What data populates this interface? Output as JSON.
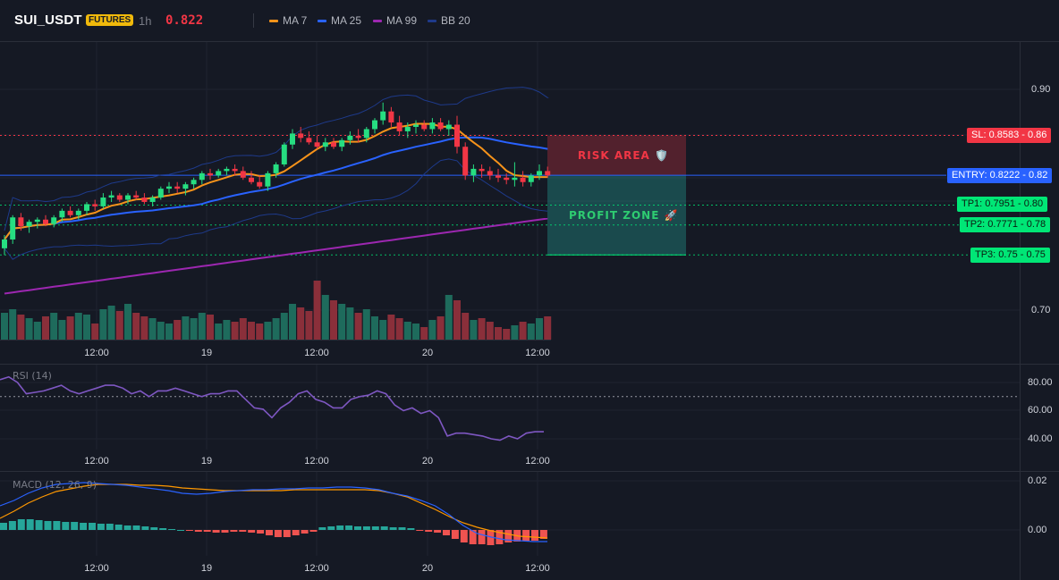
{
  "header": {
    "symbol": "SUI_USDT",
    "badge": "FUTURES",
    "timeframe": "1h",
    "price": "0.822",
    "legend": [
      {
        "label": "MA 7",
        "color": "#f7931a"
      },
      {
        "label": "MA 25",
        "color": "#2962ff"
      },
      {
        "label": "MA 99",
        "color": "#9c27b0"
      },
      {
        "label": "BB 20",
        "color": "#1e3a8a"
      }
    ]
  },
  "price_axis": {
    "ticks": [
      {
        "label": "0.90",
        "value": 0.9
      },
      {
        "label": "0.70",
        "value": 0.7
      }
    ]
  },
  "time_axis": {
    "labels": [
      "12:00",
      "19",
      "12:00",
      "20",
      "12:00"
    ]
  },
  "levels": {
    "sl": {
      "label": "SL: 0.8583 - 0.86",
      "value": 0.8583,
      "color": "#f23645"
    },
    "entry": {
      "label": "ENTRY: 0.8222 - 0.82",
      "value": 0.8222,
      "color": "#2962ff"
    },
    "tp1": {
      "label": "TP1: 0.7951 - 0.80",
      "value": 0.7951,
      "color": "#00e676"
    },
    "tp2": {
      "label": "TP2: 0.7771 - 0.78",
      "value": 0.7771,
      "color": "#00e676"
    },
    "tp3": {
      "label": "TP3: 0.75 - 0.75",
      "value": 0.75,
      "color": "#00e676"
    }
  },
  "zones": {
    "risk": {
      "label": "RISK AREA 🛡️",
      "color": "#f23645"
    },
    "profit": {
      "label": "PROFIT ZONE 🚀",
      "color": "#26a69a"
    }
  },
  "rsi": {
    "title": "RSI (14)",
    "ticks": [
      "80.00",
      "60.00",
      "40.00"
    ],
    "overbought": 70
  },
  "macd": {
    "title": "MACD (12, 26, 9)",
    "ticks": [
      "0.02",
      "0.00"
    ]
  },
  "colors": {
    "up": "#26de81",
    "down": "#f23645",
    "ma7": "#f7931a",
    "ma25": "#2962ff",
    "ma99": "#9c27b0",
    "bb": "#1e3a8a",
    "rsi": "#7e57c2"
  },
  "chart_data": {
    "type": "candlestick",
    "candles": [
      [
        0.756,
        0.768,
        0.75,
        0.764
      ],
      [
        0.764,
        0.786,
        0.76,
        0.784
      ],
      [
        0.784,
        0.788,
        0.772,
        0.776
      ],
      [
        0.776,
        0.782,
        0.77,
        0.78
      ],
      [
        0.78,
        0.784,
        0.774,
        0.782
      ],
      [
        0.782,
        0.786,
        0.776,
        0.778
      ],
      [
        0.778,
        0.786,
        0.775,
        0.784
      ],
      [
        0.784,
        0.792,
        0.78,
        0.79
      ],
      [
        0.79,
        0.794,
        0.784,
        0.786
      ],
      [
        0.786,
        0.792,
        0.782,
        0.79
      ],
      [
        0.79,
        0.798,
        0.786,
        0.796
      ],
      [
        0.796,
        0.8,
        0.79,
        0.794
      ],
      [
        0.794,
        0.806,
        0.792,
        0.802
      ],
      [
        0.802,
        0.808,
        0.798,
        0.804
      ],
      [
        0.804,
        0.806,
        0.798,
        0.8
      ],
      [
        0.8,
        0.806,
        0.796,
        0.804
      ],
      [
        0.804,
        0.808,
        0.8,
        0.802
      ],
      [
        0.802,
        0.806,
        0.796,
        0.798
      ],
      [
        0.798,
        0.804,
        0.794,
        0.802
      ],
      [
        0.802,
        0.812,
        0.8,
        0.81
      ],
      [
        0.81,
        0.816,
        0.806,
        0.812
      ],
      [
        0.812,
        0.816,
        0.806,
        0.81
      ],
      [
        0.81,
        0.816,
        0.804,
        0.814
      ],
      [
        0.814,
        0.82,
        0.81,
        0.818
      ],
      [
        0.818,
        0.826,
        0.814,
        0.824
      ],
      [
        0.824,
        0.828,
        0.818,
        0.822
      ],
      [
        0.822,
        0.828,
        0.82,
        0.826
      ],
      [
        0.826,
        0.83,
        0.822,
        0.828
      ],
      [
        0.828,
        0.832,
        0.822,
        0.826
      ],
      [
        0.826,
        0.83,
        0.818,
        0.82
      ],
      [
        0.82,
        0.826,
        0.814,
        0.816
      ],
      [
        0.816,
        0.822,
        0.81,
        0.812
      ],
      [
        0.812,
        0.826,
        0.808,
        0.824
      ],
      [
        0.824,
        0.834,
        0.82,
        0.832
      ],
      [
        0.832,
        0.852,
        0.83,
        0.85
      ],
      [
        0.85,
        0.864,
        0.846,
        0.86
      ],
      [
        0.86,
        0.866,
        0.852,
        0.856
      ],
      [
        0.856,
        0.862,
        0.85,
        0.852
      ],
      [
        0.852,
        0.858,
        0.846,
        0.848
      ],
      [
        0.848,
        0.856,
        0.844,
        0.852
      ],
      [
        0.852,
        0.856,
        0.846,
        0.848
      ],
      [
        0.848,
        0.856,
        0.844,
        0.854
      ],
      [
        0.854,
        0.862,
        0.85,
        0.858
      ],
      [
        0.858,
        0.864,
        0.852,
        0.856
      ],
      [
        0.856,
        0.866,
        0.852,
        0.864
      ],
      [
        0.864,
        0.874,
        0.86,
        0.872
      ],
      [
        0.872,
        0.888,
        0.868,
        0.88
      ],
      [
        0.88,
        0.884,
        0.866,
        0.87
      ],
      [
        0.87,
        0.876,
        0.858,
        0.862
      ],
      [
        0.862,
        0.87,
        0.856,
        0.866
      ],
      [
        0.866,
        0.872,
        0.86,
        0.868
      ],
      [
        0.868,
        0.872,
        0.862,
        0.864
      ],
      [
        0.864,
        0.874,
        0.86,
        0.87
      ],
      [
        0.87,
        0.874,
        0.862,
        0.864
      ],
      [
        0.864,
        0.872,
        0.858,
        0.868
      ],
      [
        0.868,
        0.876,
        0.842,
        0.848
      ],
      [
        0.848,
        0.852,
        0.818,
        0.822
      ],
      [
        0.822,
        0.832,
        0.816,
        0.828
      ],
      [
        0.828,
        0.832,
        0.82,
        0.826
      ],
      [
        0.826,
        0.83,
        0.818,
        0.822
      ],
      [
        0.822,
        0.828,
        0.816,
        0.82
      ],
      [
        0.82,
        0.824,
        0.814,
        0.818
      ],
      [
        0.818,
        0.834,
        0.812,
        0.82
      ],
      [
        0.82,
        0.826,
        0.812,
        0.816
      ],
      [
        0.816,
        0.824,
        0.812,
        0.822
      ],
      [
        0.822,
        0.832,
        0.818,
        0.826
      ],
      [
        0.826,
        0.83,
        0.82,
        0.822
      ]
    ],
    "price_range": [
      0.68,
      0.935
    ]
  }
}
